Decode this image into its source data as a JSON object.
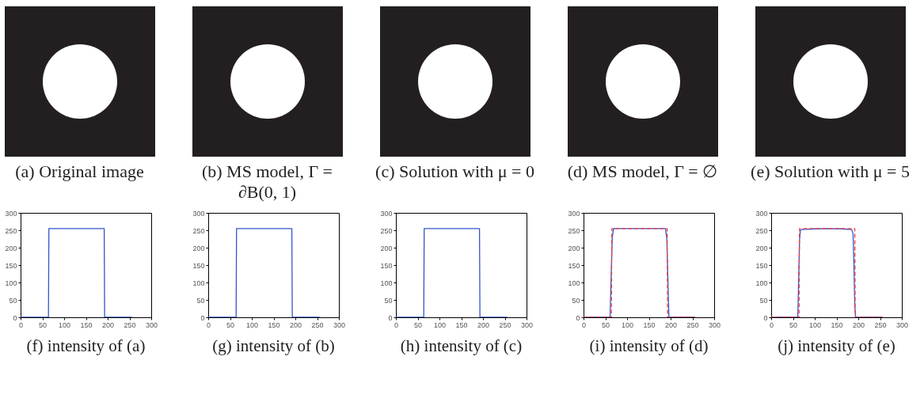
{
  "chart_data": [
    {
      "type": "other",
      "title": "(a) Original image"
    },
    {
      "type": "other",
      "title": "(b) MS model, Γ = ∂B(0, 1)"
    },
    {
      "type": "other",
      "title": "(c) Solution with μ = 0"
    },
    {
      "type": "other",
      "title": "(d) MS model, Γ = ∅"
    },
    {
      "type": "other",
      "title": "(e) Solution with μ = 5"
    },
    {
      "type": "line",
      "title": "(f) intensity of (a)",
      "xlim": [
        0,
        300
      ],
      "xticks": [
        0,
        50,
        100,
        150,
        200,
        250,
        300
      ],
      "ylim": [
        0,
        300
      ],
      "yticks": [
        0,
        50,
        100,
        150,
        200,
        250,
        300
      ],
      "series": [
        {
          "color": "#3355cc",
          "x": [
            0,
            64,
            65,
            192,
            193,
            256
          ],
          "values": [
            0,
            0,
            255,
            255,
            0,
            0
          ]
        }
      ]
    },
    {
      "type": "line",
      "title": "(g) intensity of (b)",
      "xlim": [
        0,
        300
      ],
      "xticks": [
        0,
        50,
        100,
        150,
        200,
        250,
        300
      ],
      "ylim": [
        0,
        300
      ],
      "yticks": [
        0,
        50,
        100,
        150,
        200,
        250,
        300
      ],
      "series": [
        {
          "color": "#3355cc",
          "x": [
            0,
            64,
            65,
            192,
            193,
            256
          ],
          "values": [
            0,
            0,
            255,
            255,
            0,
            0
          ]
        }
      ]
    },
    {
      "type": "line",
      "title": "(h) intensity of (c)",
      "xlim": [
        0,
        300
      ],
      "xticks": [
        0,
        50,
        100,
        150,
        200,
        250,
        300
      ],
      "ylim": [
        0,
        300
      ],
      "yticks": [
        0,
        50,
        100,
        150,
        200,
        250,
        300
      ],
      "series": [
        {
          "color": "#3355cc",
          "x": [
            0,
            64,
            65,
            192,
            193,
            256
          ],
          "values": [
            0,
            0,
            255,
            255,
            0,
            0
          ]
        }
      ]
    },
    {
      "type": "line",
      "title": "(i) intensity of (d)",
      "xlim": [
        0,
        300
      ],
      "xticks": [
        0,
        50,
        100,
        150,
        200,
        250,
        300
      ],
      "ylim": [
        0,
        300
      ],
      "yticks": [
        0,
        50,
        100,
        150,
        200,
        250,
        300
      ],
      "series": [
        {
          "color": "#3355cc",
          "x": [
            0,
            61,
            63,
            66,
            69,
            188,
            191,
            194,
            196,
            256
          ],
          "values": [
            0,
            0,
            100,
            230,
            255,
            255,
            230,
            100,
            0,
            0
          ]
        },
        {
          "color": "#ff3b3b",
          "line_style": "dashed",
          "x": [
            0,
            64,
            65,
            192,
            193,
            256
          ],
          "values": [
            0,
            0,
            255,
            255,
            0,
            0
          ]
        }
      ]
    },
    {
      "type": "line",
      "title": "(j) intensity of (e)",
      "xlim": [
        0,
        300
      ],
      "xticks": [
        0,
        50,
        100,
        150,
        200,
        250,
        300
      ],
      "ylim": [
        0,
        300
      ],
      "yticks": [
        0,
        50,
        100,
        150,
        200,
        250,
        300
      ],
      "series": [
        {
          "color": "#3355cc",
          "x": [
            0,
            61,
            63,
            65,
            67,
            70,
            100,
            128,
            160,
            185,
            188,
            190,
            192,
            194,
            256
          ],
          "values": [
            0,
            0,
            100,
            220,
            250,
            252,
            254,
            255,
            254,
            252,
            240,
            150,
            30,
            0,
            0
          ]
        },
        {
          "color": "#ff3b3b",
          "line_style": "dashed",
          "x": [
            0,
            64,
            65,
            192,
            193,
            256
          ],
          "values": [
            0,
            0,
            255,
            255,
            0,
            0
          ]
        }
      ]
    }
  ]
}
